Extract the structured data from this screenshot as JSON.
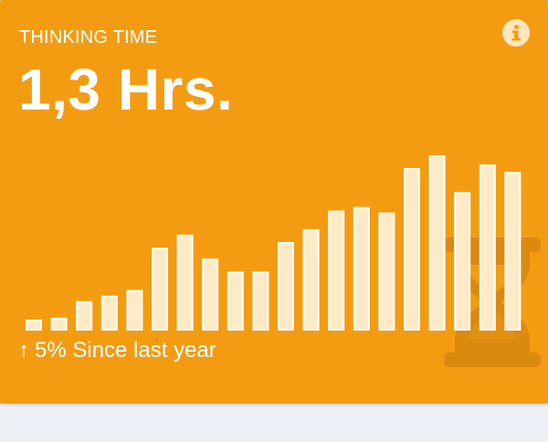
{
  "card": {
    "label": "THINKING TIME",
    "value": "1,3 Hrs.",
    "change_arrow": "↑",
    "change_text": "5% Since last year",
    "info_icon": "info-icon",
    "background_icon": "hourglass-icon",
    "colors": {
      "background": "#f39c12",
      "bar_fill": "#fdebc7",
      "icon_tint": "#d9870f"
    }
  },
  "chart_data": {
    "type": "bar",
    "values": [
      5,
      6,
      15,
      18,
      21,
      44,
      51,
      38,
      31,
      31,
      47,
      54,
      64,
      66,
      63,
      87,
      94,
      74,
      89,
      85
    ]
  }
}
